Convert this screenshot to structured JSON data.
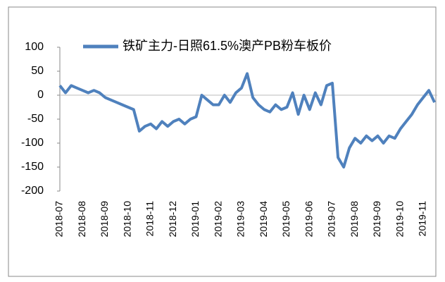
{
  "chart_data": {
    "type": "line",
    "categories": [
      "2018-07",
      null,
      null,
      null,
      "2018-08",
      null,
      null,
      null,
      "2018-09",
      null,
      null,
      null,
      "2018-10",
      null,
      null,
      null,
      "2018-11",
      null,
      null,
      null,
      "2018-12",
      null,
      null,
      null,
      "2019-01",
      null,
      null,
      null,
      "2019-02",
      null,
      null,
      null,
      "2019-03",
      null,
      null,
      null,
      "2019-04",
      null,
      null,
      null,
      "2019-05",
      null,
      null,
      null,
      "2019-06",
      null,
      null,
      null,
      "2019-07",
      null,
      null,
      null,
      "2019-08",
      null,
      null,
      null,
      "2019-09",
      null,
      null,
      null,
      "2019-10",
      null,
      null,
      null,
      "2019-11",
      null,
      null
    ],
    "series": [
      {
        "name": "铁矿主力-日照61.5%澳产PB粉车板价",
        "color": "#4f81bd",
        "values": [
          20,
          5,
          20,
          15,
          10,
          5,
          10,
          5,
          -5,
          -10,
          -15,
          -20,
          -25,
          -30,
          -75,
          -65,
          -60,
          -70,
          -55,
          -65,
          -55,
          -50,
          -60,
          -50,
          -45,
          0,
          -10,
          -20,
          -20,
          0,
          -15,
          5,
          15,
          45,
          -5,
          -20,
          -30,
          -35,
          -20,
          -30,
          -25,
          5,
          -40,
          0,
          -30,
          5,
          -20,
          20,
          25,
          -130,
          -150,
          -110,
          -90,
          -100,
          -85,
          -95,
          -85,
          -100,
          -85,
          -90,
          -70,
          -55,
          -40,
          -20,
          -5,
          10,
          -15
        ]
      }
    ],
    "ylim": [
      -200,
      100
    ],
    "yticks": [
      -200,
      -150,
      -100,
      -50,
      0,
      50,
      100
    ],
    "grid": false,
    "legend": "top"
  }
}
